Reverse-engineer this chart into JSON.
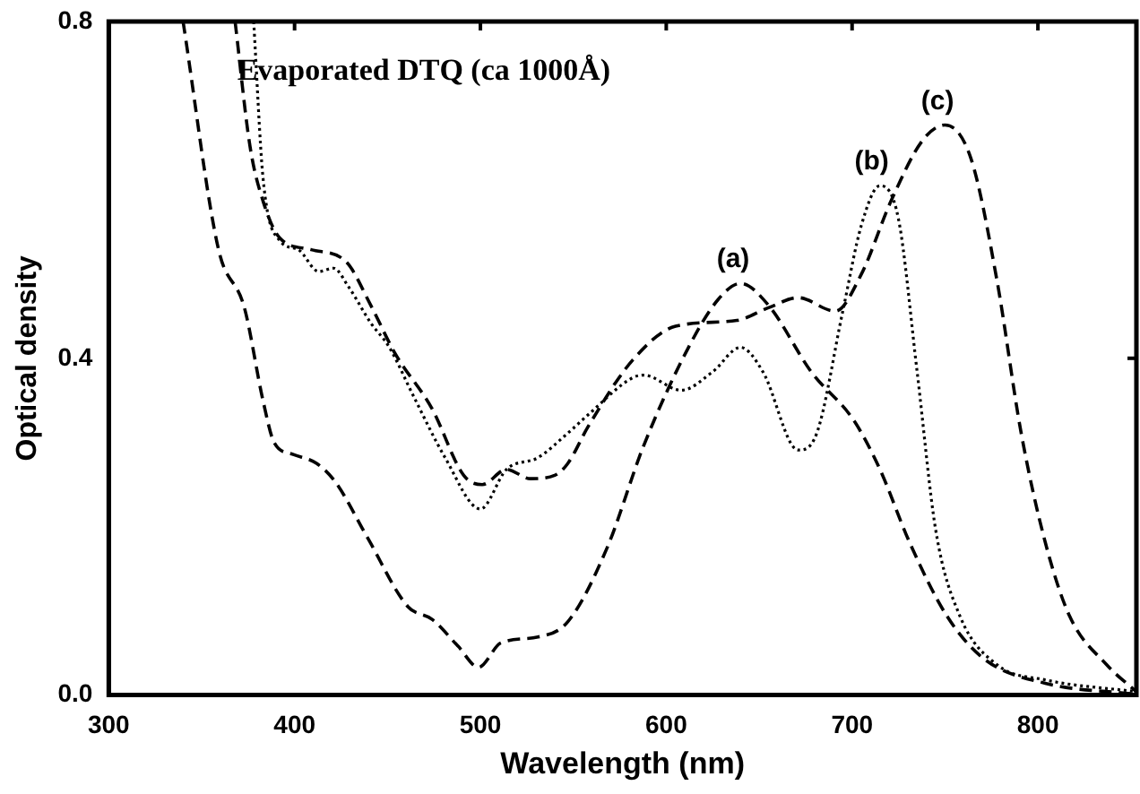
{
  "chart_data": {
    "type": "line",
    "title": "Evaporated DTQ (ca 1000Å)",
    "xlabel": "Wavelength (nm)",
    "ylabel": "Optical density",
    "xlim": [
      300,
      853
    ],
    "xticks": [
      300,
      400,
      500,
      600,
      700,
      800
    ],
    "ylim": [
      0,
      0.8
    ],
    "yticks": [
      {
        "value": 0,
        "label": "0.0"
      },
      {
        "value": 0.4,
        "label": "0.4"
      },
      {
        "value": 0.8,
        "label": "0.8"
      }
    ],
    "grid": false,
    "legend": false,
    "marker": "none",
    "series": [
      {
        "name": "(a)",
        "color": "#000000",
        "line_style": "dashed",
        "x": [
          340,
          359,
          373,
          383,
          389,
          399,
          412,
          422,
          439,
          461,
          474,
          488,
          499,
          511,
          531,
          547,
          568,
          588,
          612,
          628,
          640,
          655,
          678,
          701,
          715,
          731,
          751,
          771,
          804,
          853
        ],
        "values": [
          0.8,
          0.53,
          0.46,
          0.35,
          0.3,
          0.286,
          0.275,
          0.253,
          0.188,
          0.105,
          0.09,
          0.058,
          0.033,
          0.062,
          0.069,
          0.087,
          0.174,
          0.297,
          0.413,
          0.47,
          0.489,
          0.463,
          0.384,
          0.326,
          0.268,
          0.181,
          0.094,
          0.043,
          0.014,
          0.001
        ]
      },
      {
        "name": "(b)",
        "color": "#000000",
        "line_style": "dotted",
        "x": [
          378,
          383,
          392,
          402,
          413,
          421,
          429,
          441,
          451,
          464,
          481,
          500,
          514,
          531,
          547,
          558,
          582,
          588,
          608,
          625,
          640,
          652,
          671,
          681,
          695,
          705,
          715,
          725,
          735,
          745,
          758,
          778,
          804,
          853
        ],
        "values": [
          0.8,
          0.615,
          0.54,
          0.529,
          0.503,
          0.507,
          0.485,
          0.442,
          0.413,
          0.355,
          0.282,
          0.221,
          0.268,
          0.282,
          0.311,
          0.333,
          0.377,
          0.38,
          0.362,
          0.384,
          0.413,
          0.384,
          0.291,
          0.311,
          0.456,
          0.558,
          0.605,
          0.565,
          0.384,
          0.196,
          0.094,
          0.036,
          0.018,
          0.004
        ]
      },
      {
        "name": "(c)",
        "color": "#000000",
        "line_style": "dashed",
        "x": [
          368,
          376,
          383,
          392,
          409,
          428,
          441,
          454,
          474,
          491,
          501,
          514,
          527,
          540,
          547,
          558,
          582,
          605,
          638,
          655,
          671,
          691,
          705,
          721,
          738,
          750,
          764,
          778,
          791,
          804,
          817,
          837,
          853
        ],
        "values": [
          0.8,
          0.652,
          0.587,
          0.543,
          0.529,
          0.514,
          0.463,
          0.406,
          0.34,
          0.261,
          0.25,
          0.268,
          0.257,
          0.261,
          0.275,
          0.319,
          0.398,
          0.438,
          0.445,
          0.46,
          0.472,
          0.456,
          0.5,
          0.587,
          0.659,
          0.677,
          0.637,
          0.492,
          0.311,
          0.181,
          0.094,
          0.036,
          0.004
        ]
      }
    ]
  }
}
